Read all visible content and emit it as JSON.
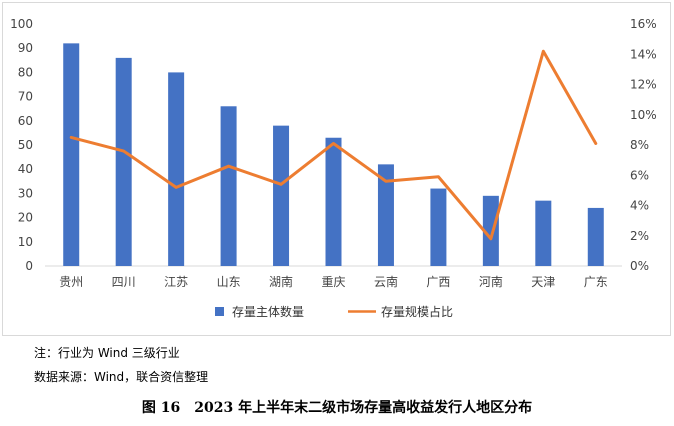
{
  "chart_data": {
    "type": "bar+line",
    "categories": [
      "贵州",
      "四川",
      "江苏",
      "山东",
      "湖南",
      "重庆",
      "云南",
      "广西",
      "河南",
      "天津",
      "广东"
    ],
    "series": [
      {
        "name": "存量主体数量",
        "type": "bar",
        "axis": "left",
        "color": "#4472C4",
        "values": [
          92,
          86,
          80,
          66,
          58,
          53,
          42,
          32,
          29,
          27,
          24
        ]
      },
      {
        "name": "存量规模占比",
        "type": "line",
        "axis": "right",
        "color": "#ED7D31",
        "values": [
          8.5,
          7.6,
          5.2,
          6.6,
          5.4,
          8.1,
          5.6,
          5.9,
          1.8,
          14.2,
          8.1
        ]
      }
    ],
    "y_left": {
      "min": 0,
      "max": 100,
      "step": 10,
      "ticks": [
        "0",
        "10",
        "20",
        "30",
        "40",
        "50",
        "60",
        "70",
        "80",
        "90",
        "100"
      ]
    },
    "y_right": {
      "min": 0,
      "max": 16,
      "step": 2,
      "ticks": [
        "0%",
        "2%",
        "4%",
        "6%",
        "8%",
        "10%",
        "12%",
        "14%",
        "16%"
      ]
    },
    "legend_position": "bottom",
    "grid": false
  },
  "notes": {
    "note": "注：行业为 Wind 三级行业",
    "source": "数据来源：Wind，联合资信整理"
  },
  "caption": "图 16　2023 年上半年末二级市场存量高收益发行人地区分布"
}
